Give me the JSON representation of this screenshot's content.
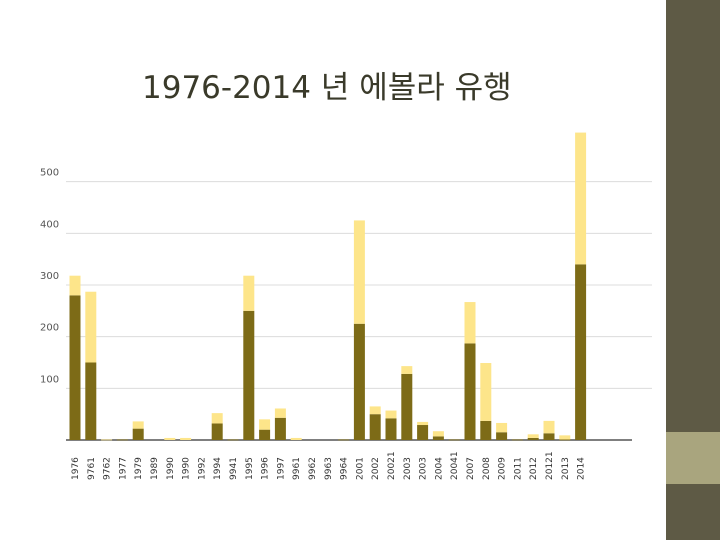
{
  "slide": {
    "title": "1976-2014 년 에볼라 유행"
  },
  "theme": {
    "dark_bar": "#5e5a45",
    "accent": "#a9a57e",
    "series_dark": "#7d6b17",
    "series_light": "#fde58a"
  },
  "chart_data": {
    "type": "bar",
    "stacked": true,
    "title": "",
    "xlabel": "",
    "ylabel": "",
    "ylim": [
      0,
      600
    ],
    "yticks": [
      100,
      200,
      300,
      400,
      500
    ],
    "grid": true,
    "legend": "none",
    "categories": [
      "1976",
      "9761",
      "9762",
      "1977",
      "1979",
      "1989",
      "1990",
      "1990",
      "1992",
      "1994",
      "9941",
      "1995",
      "1996",
      "1997",
      "9961",
      "9962",
      "9963",
      "9964",
      "2001",
      "2002",
      "20021",
      "2003",
      "2003",
      "2004",
      "20041",
      "2007",
      "2008",
      "2009",
      "2011",
      "2012",
      "20121",
      "2013",
      "2014"
    ],
    "series": [
      {
        "color": "#7d6b17",
        "values": [
          280,
          150,
          0,
          1,
          22,
          0,
          0,
          0,
          0,
          32,
          1,
          250,
          20,
          43,
          0,
          0,
          0,
          1,
          225,
          50,
          42,
          128,
          29,
          7,
          1,
          187,
          37,
          15,
          1,
          4,
          13,
          1,
          340
        ]
      },
      {
        "color": "#fde58a",
        "values": [
          38,
          137,
          1,
          0,
          14,
          0,
          4,
          4,
          0,
          20,
          0,
          68,
          20,
          18,
          4,
          0,
          0,
          0,
          200,
          15,
          15,
          15,
          6,
          10,
          0,
          80,
          112,
          18,
          0,
          7,
          24,
          8,
          255
        ]
      }
    ]
  }
}
